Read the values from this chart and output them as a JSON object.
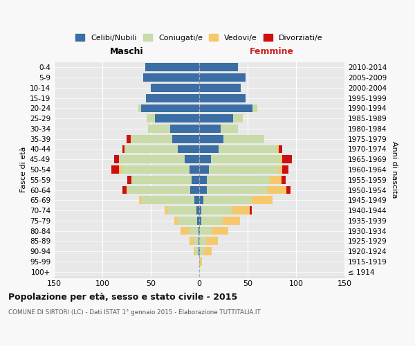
{
  "age_groups": [
    "100+",
    "95-99",
    "90-94",
    "85-89",
    "80-84",
    "75-79",
    "70-74",
    "65-69",
    "60-64",
    "55-59",
    "50-54",
    "45-49",
    "40-44",
    "35-39",
    "30-34",
    "25-29",
    "20-24",
    "15-19",
    "10-14",
    "5-9",
    "0-4"
  ],
  "birth_years": [
    "≤ 1914",
    "1915-1919",
    "1920-1924",
    "1925-1929",
    "1930-1934",
    "1935-1939",
    "1940-1944",
    "1945-1949",
    "1950-1954",
    "1955-1959",
    "1960-1964",
    "1965-1969",
    "1970-1974",
    "1975-1979",
    "1980-1984",
    "1985-1989",
    "1990-1994",
    "1995-1999",
    "2000-2004",
    "2005-2009",
    "2010-2014"
  ],
  "male_celibi": [
    0,
    0,
    1,
    1,
    1,
    2,
    3,
    5,
    9,
    8,
    10,
    15,
    22,
    28,
    30,
    46,
    60,
    55,
    50,
    58,
    56
  ],
  "male_coniugati": [
    0,
    0,
    3,
    5,
    10,
    20,
    30,
    55,
    65,
    62,
    70,
    68,
    55,
    43,
    23,
    8,
    3,
    0,
    0,
    0,
    0
  ],
  "male_vedovi": [
    0,
    0,
    2,
    4,
    8,
    4,
    3,
    2,
    1,
    0,
    3,
    0,
    0,
    0,
    0,
    0,
    0,
    0,
    0,
    0,
    0
  ],
  "male_divorziati": [
    0,
    0,
    0,
    0,
    0,
    0,
    0,
    0,
    4,
    4,
    8,
    5,
    2,
    4,
    0,
    0,
    0,
    0,
    0,
    0,
    0
  ],
  "female_nubili": [
    0,
    0,
    1,
    0,
    1,
    2,
    2,
    4,
    8,
    8,
    10,
    12,
    20,
    25,
    22,
    35,
    55,
    48,
    43,
    48,
    40
  ],
  "female_coniugate": [
    0,
    1,
    4,
    7,
    12,
    22,
    32,
    50,
    62,
    65,
    72,
    72,
    60,
    42,
    18,
    10,
    5,
    0,
    0,
    0,
    0
  ],
  "female_vedove": [
    0,
    2,
    8,
    12,
    17,
    18,
    18,
    22,
    20,
    12,
    4,
    2,
    2,
    0,
    0,
    0,
    0,
    0,
    0,
    0,
    0
  ],
  "female_divorziate": [
    0,
    0,
    0,
    0,
    0,
    0,
    2,
    0,
    4,
    4,
    6,
    10,
    4,
    0,
    0,
    0,
    0,
    0,
    0,
    0,
    0
  ],
  "color_celibi": "#3a6ea5",
  "color_coniugati": "#c8dba8",
  "color_vedovi": "#f5c96b",
  "color_divorziati": "#cc1010",
  "title": "Popolazione per età, sesso e stato civile - 2015",
  "subtitle": "COMUNE DI SIRTORI (LC) - Dati ISTAT 1° gennaio 2015 - Elaborazione TUTTITALIA.IT",
  "label_maschi": "Maschi",
  "label_femmine": "Femmine",
  "ylabel_left": "Fasce di età",
  "ylabel_right": "Anni di nascita",
  "legend_labels": [
    "Celibi/Nubili",
    "Coniugati/e",
    "Vedovi/e",
    "Divorziati/e"
  ],
  "xlim": 150,
  "bg_color": "#f8f8f8",
  "plot_bg": "#e8e8e8",
  "grid_color": "#ffffff"
}
